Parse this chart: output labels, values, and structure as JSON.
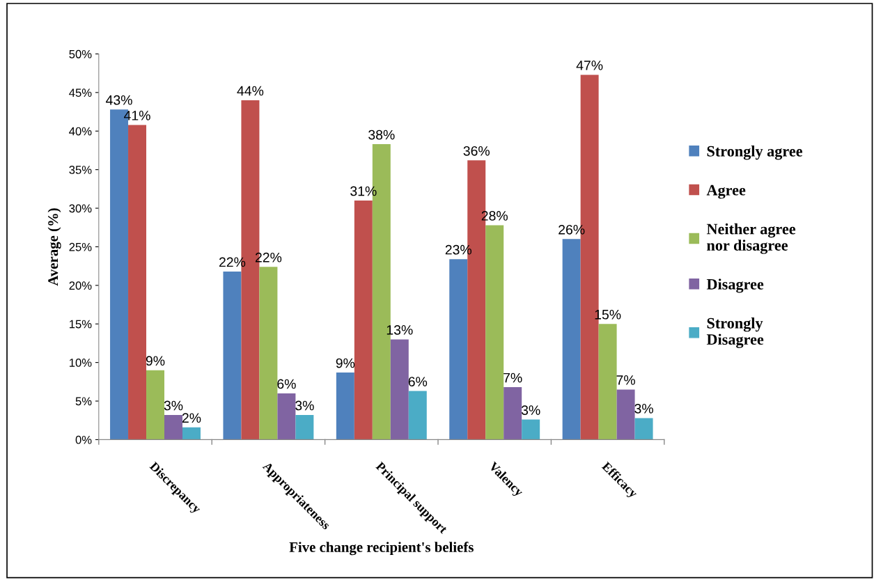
{
  "chart_data": {
    "type": "bar",
    "xlabel": "Five change recipient's beliefs",
    "ylabel": "Average (%)",
    "categories": [
      "Discrepancy",
      "Appropriateness",
      "Principal support",
      "Valency",
      "Efficacy"
    ],
    "series": [
      {
        "name": "Strongly agree",
        "color": "#4f81bd",
        "values": [
          42.8,
          21.8,
          8.7,
          23.4,
          26.0
        ],
        "value_labels": [
          "43%",
          "22%",
          "9%",
          "23%",
          "26%"
        ]
      },
      {
        "name": "Agree",
        "color": "#c0504d",
        "values": [
          40.8,
          44.0,
          31.0,
          36.2,
          47.3
        ],
        "value_labels": [
          "41%",
          "44%",
          "31%",
          "36%",
          "47%"
        ]
      },
      {
        "name": "Neither agree\nnor disagree",
        "color": "#9bbb59",
        "values": [
          9.0,
          22.4,
          38.3,
          27.8,
          15.0
        ],
        "value_labels": [
          "9%",
          "22%",
          "38%",
          "28%",
          "15%"
        ]
      },
      {
        "name": "Disagree",
        "color": "#8064a2",
        "values": [
          3.2,
          6.0,
          13.0,
          6.8,
          6.5
        ],
        "value_labels": [
          "3%",
          "6%",
          "13%",
          "7%",
          "7%"
        ]
      },
      {
        "name": "Strongly\nDisagree",
        "color": "#4bacc6",
        "values": [
          1.6,
          3.2,
          6.3,
          2.6,
          2.8
        ],
        "value_labels": [
          "2%",
          "3%",
          "6%",
          "3%",
          "3%"
        ]
      }
    ],
    "ylim": [
      0,
      50
    ],
    "yticks": [
      {
        "value": 0,
        "label": "0%"
      },
      {
        "value": 5,
        "label": "5%"
      },
      {
        "value": 10,
        "label": "10%"
      },
      {
        "value": 15,
        "label": "15%"
      },
      {
        "value": 20,
        "label": "20%"
      },
      {
        "value": 25,
        "label": "25%"
      },
      {
        "value": 30,
        "label": "30%"
      },
      {
        "value": 35,
        "label": "35%"
      },
      {
        "value": 40,
        "label": "40%"
      },
      {
        "value": 45,
        "label": "45%"
      },
      {
        "value": 50,
        "label": "50%"
      }
    ],
    "grid": false,
    "legend": "right"
  }
}
